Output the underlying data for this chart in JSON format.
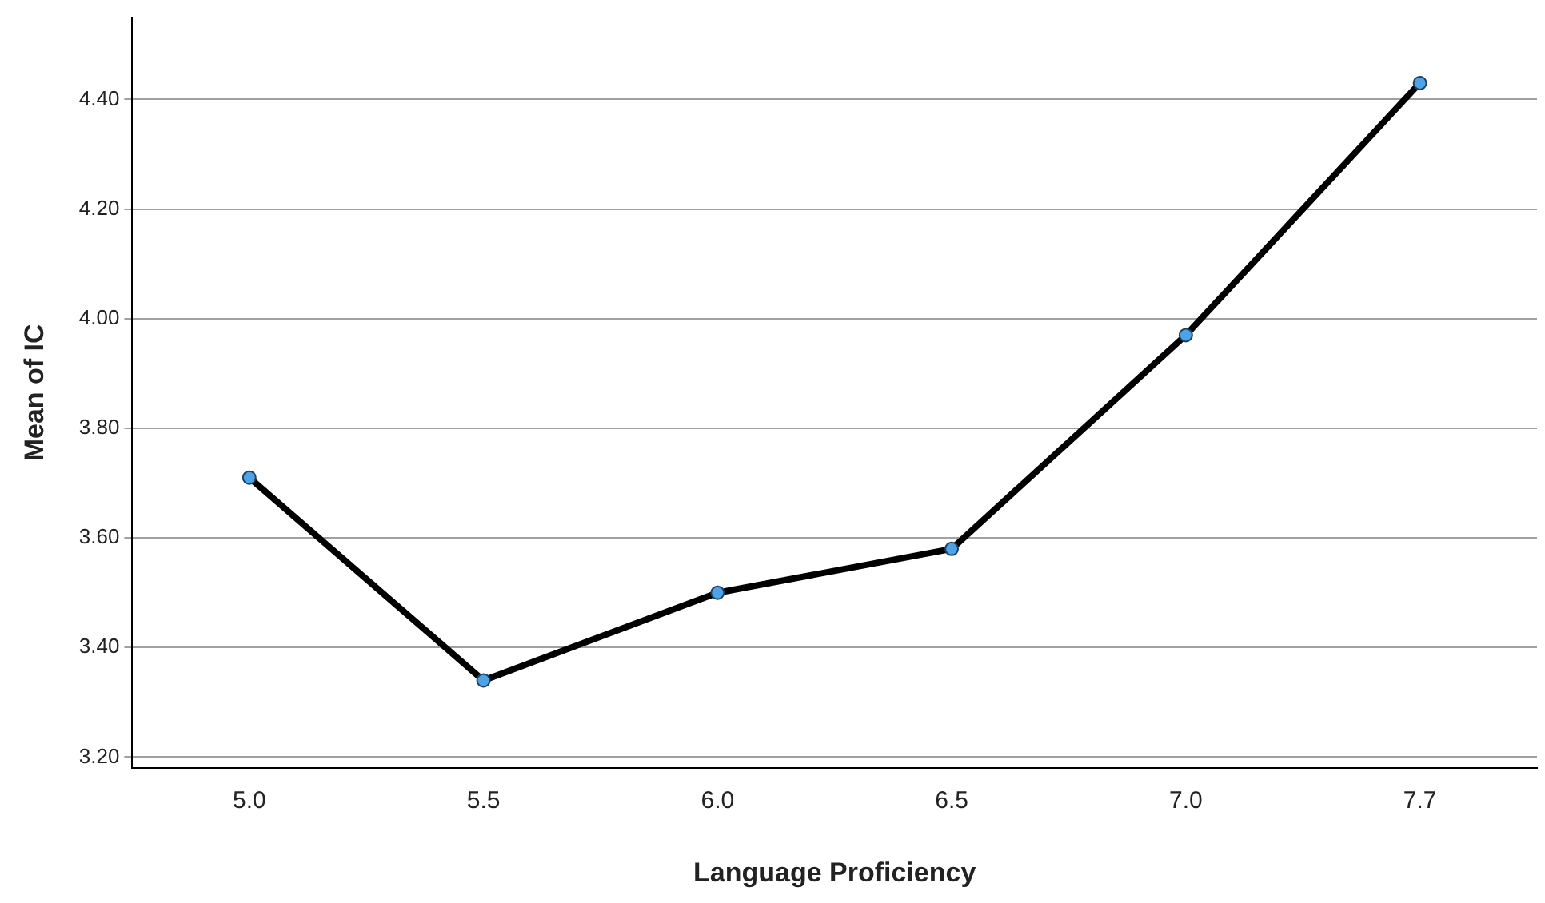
{
  "chart_data": {
    "type": "line",
    "xlabel": "Language Proficiency",
    "ylabel": "Mean of IC",
    "categories": [
      "5.0",
      "5.5",
      "6.0",
      "6.5",
      "7.0",
      "7.7"
    ],
    "series": [
      {
        "color": "#000000",
        "values": [
          3.71,
          3.34,
          3.5,
          3.58,
          3.97,
          4.43
        ]
      }
    ],
    "ylim": [
      3.18,
      4.55
    ],
    "yticks": [
      {
        "value": 3.2,
        "label": "3.20"
      },
      {
        "value": 3.4,
        "label": "3.40"
      },
      {
        "value": 3.6,
        "label": "3.60"
      },
      {
        "value": 3.8,
        "label": "3.80"
      },
      {
        "value": 4.0,
        "label": "4.00"
      },
      {
        "value": 4.2,
        "label": "4.20"
      },
      {
        "value": 4.4,
        "label": "4.40"
      }
    ],
    "grid": "y",
    "marker": "circle",
    "line_style": "solid",
    "legend": false
  }
}
